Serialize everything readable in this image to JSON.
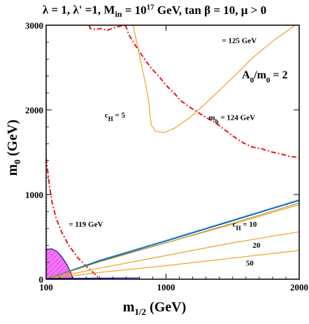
{
  "chart_data": {
    "type": "line",
    "title": "λ = 1, λ' =1, M_in = 10^17 GeV, tan β = 10,  μ > 0",
    "title_parts": {
      "pre": "λ = 1, λ' =1, M",
      "sub": "in",
      "post": " = 10^17 GeV, tan β = 10,  μ > 0"
    },
    "xlabel": {
      "main": "m",
      "sub": "1/2",
      "unit": " (GeV)"
    },
    "ylabel": "m0 (GeV)",
    "xlim": [
      100,
      2000
    ],
    "ylim": [
      0,
      3000
    ],
    "xticks": [
      100,
      1000,
      2000
    ],
    "yticks": [
      0,
      1000,
      2000,
      3000
    ],
    "grid": false,
    "annotations": {
      "a0_ratio": "A0/m0 = 2",
      "mh125": "= 125 GeV",
      "mh124": "m_h  = 124 GeV",
      "mh119": "= 119 GeV",
      "ch5": "c_H =  5",
      "ch10": "c_H = 10",
      "ch20": "20",
      "ch50": "50"
    },
    "colors": {
      "higgs_mass": "#e8151b",
      "fine_tuning": "#f0a020",
      "relic_density": "#30b8e0",
      "relic_density_dark": "#1a3aa0",
      "excluded_region": "#ff60ff",
      "excluded_region_edge": "#1a1a6a",
      "other_strip": "#a0a040",
      "charged_lsp_line": "#0000c0"
    },
    "series": [
      {
        "role": "higgs",
        "label": "m_h = 125 GeV",
        "style": "dashdot",
        "color_key": "higgs_mass",
        "points": [
          [
            425,
            3000
          ],
          [
            430,
            2960
          ],
          [
            470,
            2950
          ],
          [
            510,
            2960
          ],
          [
            560,
            2940
          ],
          [
            610,
            2970
          ],
          [
            660,
            2990
          ],
          [
            700,
            3000
          ]
        ]
      },
      {
        "role": "higgs",
        "label": "m_h = 124 GeV",
        "style": "dashdot",
        "color_key": "higgs_mass",
        "points": [
          [
            695,
            3000
          ],
          [
            720,
            2890
          ],
          [
            770,
            2760
          ],
          [
            830,
            2620
          ],
          [
            890,
            2490
          ],
          [
            950,
            2390
          ],
          [
            1000,
            2290
          ],
          [
            1060,
            2200
          ],
          [
            1110,
            2110
          ],
          [
            1170,
            2040
          ],
          [
            1240,
            1970
          ],
          [
            1300,
            1910
          ],
          [
            1360,
            1860
          ],
          [
            1420,
            1790
          ],
          [
            1470,
            1730
          ],
          [
            1530,
            1660
          ],
          [
            1580,
            1610
          ],
          [
            1650,
            1560
          ],
          [
            1720,
            1540
          ],
          [
            1800,
            1500
          ],
          [
            1860,
            1480
          ],
          [
            1930,
            1450
          ],
          [
            2000,
            1440
          ]
        ]
      },
      {
        "role": "higgs",
        "label": "m_h = 119 GeV",
        "style": "dashdot",
        "color_key": "higgs_mass",
        "points": [
          [
            100,
            1430
          ],
          [
            110,
            1300
          ],
          [
            125,
            1100
          ],
          [
            145,
            900
          ],
          [
            175,
            720
          ],
          [
            215,
            560
          ],
          [
            270,
            400
          ],
          [
            340,
            250
          ],
          [
            410,
            140
          ],
          [
            480,
            40
          ],
          [
            510,
            0
          ]
        ]
      },
      {
        "role": "fine_tuning",
        "label": "c_H = 5",
        "style": "solid",
        "color_key": "fine_tuning",
        "points": [
          [
            1970,
            3000
          ],
          [
            1890,
            2910
          ],
          [
            1810,
            2820
          ],
          [
            1730,
            2720
          ],
          [
            1640,
            2600
          ],
          [
            1540,
            2440
          ],
          [
            1420,
            2260
          ],
          [
            1300,
            2080
          ],
          [
            1180,
            1910
          ],
          [
            1060,
            1780
          ],
          [
            980,
            1730
          ],
          [
            920,
            1750
          ],
          [
            890,
            1820
          ],
          [
            880,
            1940
          ],
          [
            870,
            2100
          ],
          [
            850,
            2280
          ],
          [
            820,
            2500
          ],
          [
            790,
            2720
          ],
          [
            760,
            2950
          ],
          [
            755,
            3000
          ]
        ]
      },
      {
        "role": "fine_tuning",
        "label": "c_H = 10",
        "style": "solid",
        "color_key": "fine_tuning",
        "points": [
          [
            100,
            0
          ],
          [
            500,
            210
          ],
          [
            1000,
            430
          ],
          [
            1500,
            650
          ],
          [
            2000,
            880
          ]
        ]
      },
      {
        "role": "fine_tuning",
        "label": "c_H = 20",
        "style": "solid",
        "color_key": "fine_tuning",
        "points": [
          [
            100,
            0
          ],
          [
            500,
            130
          ],
          [
            1000,
            280
          ],
          [
            1500,
            430
          ],
          [
            2000,
            560
          ]
        ]
      },
      {
        "role": "fine_tuning",
        "label": "c_H = 50",
        "style": "solid",
        "color_key": "fine_tuning",
        "points": [
          [
            100,
            0
          ],
          [
            500,
            80
          ],
          [
            1000,
            160
          ],
          [
            1500,
            250
          ],
          [
            2000,
            340
          ]
        ]
      },
      {
        "role": "relic_density",
        "label": "",
        "style": "solid",
        "color_key": "relic_density",
        "points": [
          [
            100,
            0
          ],
          [
            500,
            225
          ],
          [
            1000,
            460
          ],
          [
            1500,
            700
          ],
          [
            2000,
            940
          ]
        ]
      },
      {
        "role": "relic_density_edge",
        "label": "",
        "style": "solid",
        "color_key": "relic_density_dark",
        "points": [
          [
            100,
            0
          ],
          [
            500,
            215
          ],
          [
            1000,
            450
          ],
          [
            1500,
            690
          ],
          [
            2000,
            930
          ]
        ]
      },
      {
        "role": "other_strip",
        "label": "",
        "style": "solid",
        "color_key": "other_strip",
        "points": [
          [
            100,
            0
          ],
          [
            500,
            205
          ],
          [
            1000,
            430
          ],
          [
            1500,
            660
          ],
          [
            2000,
            900
          ]
        ]
      },
      {
        "role": "charged_lsp",
        "label": "",
        "style": "solid",
        "color_key": "charged_lsp_line",
        "points": [
          [
            100,
            8
          ],
          [
            300,
            10
          ],
          [
            500,
            12
          ],
          [
            800,
            15
          ]
        ]
      }
    ],
    "regions": [
      {
        "role": "excluded",
        "label": "",
        "color_key": "excluded_region",
        "points": [
          [
            100,
            0
          ],
          [
            100,
            350
          ],
          [
            140,
            360
          ],
          [
            180,
            330
          ],
          [
            220,
            260
          ],
          [
            260,
            160
          ],
          [
            290,
            60
          ],
          [
            300,
            0
          ]
        ]
      }
    ]
  }
}
